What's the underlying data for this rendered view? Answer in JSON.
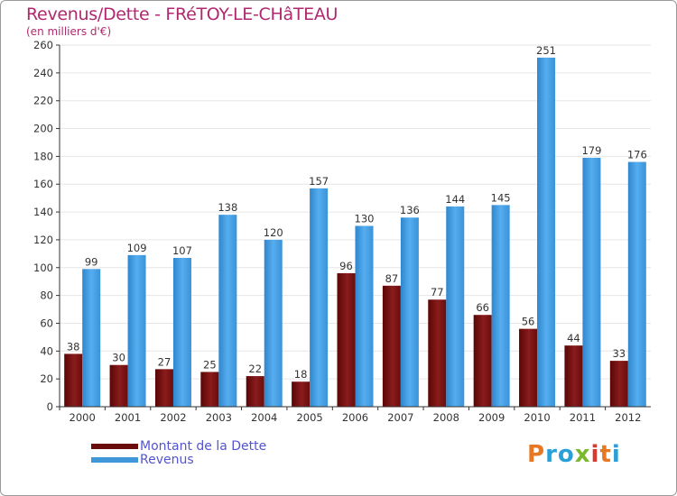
{
  "title": "Revenus/Dette - FRéTOY-LE-CHâTEAU",
  "subtitle": "(en milliers d'€)",
  "legend": {
    "debt_label": "Montant de la Dette",
    "revenue_label": "Revenus"
  },
  "logo": {
    "letters": [
      "P",
      "r",
      "o",
      "x",
      "i",
      "t",
      "i"
    ],
    "colors": [
      "#e87722",
      "#2aa0d8",
      "#2aa0d8",
      "#7ab82e",
      "#d8382e",
      "#e87722",
      "#2aa0d8"
    ]
  },
  "colors": {
    "debt": "#7a1010",
    "revenue": "#3f97d9",
    "grid": "#e6e6e6",
    "axis": "#333333",
    "title": "#b0286e"
  },
  "chart_data": {
    "type": "bar",
    "title": "Revenus/Dette - FRéTOY-LE-CHâTEAU",
    "ylabel": "(en milliers d'€)",
    "categories": [
      "2000",
      "2001",
      "2002",
      "2003",
      "2004",
      "2005",
      "2006",
      "2007",
      "2008",
      "2009",
      "2010",
      "2011",
      "2012"
    ],
    "series": [
      {
        "name": "Montant de la Dette",
        "values": [
          38,
          30,
          27,
          25,
          22,
          18,
          96,
          87,
          77,
          66,
          56,
          44,
          33
        ]
      },
      {
        "name": "Revenus",
        "values": [
          99,
          109,
          107,
          138,
          120,
          157,
          130,
          136,
          144,
          145,
          251,
          179,
          176
        ]
      }
    ],
    "ylim": [
      0,
      260
    ],
    "yticks": [
      0,
      20,
      40,
      60,
      80,
      100,
      120,
      140,
      160,
      180,
      200,
      220,
      240,
      260
    ],
    "grid": true,
    "legend_position": "bottom-left"
  }
}
